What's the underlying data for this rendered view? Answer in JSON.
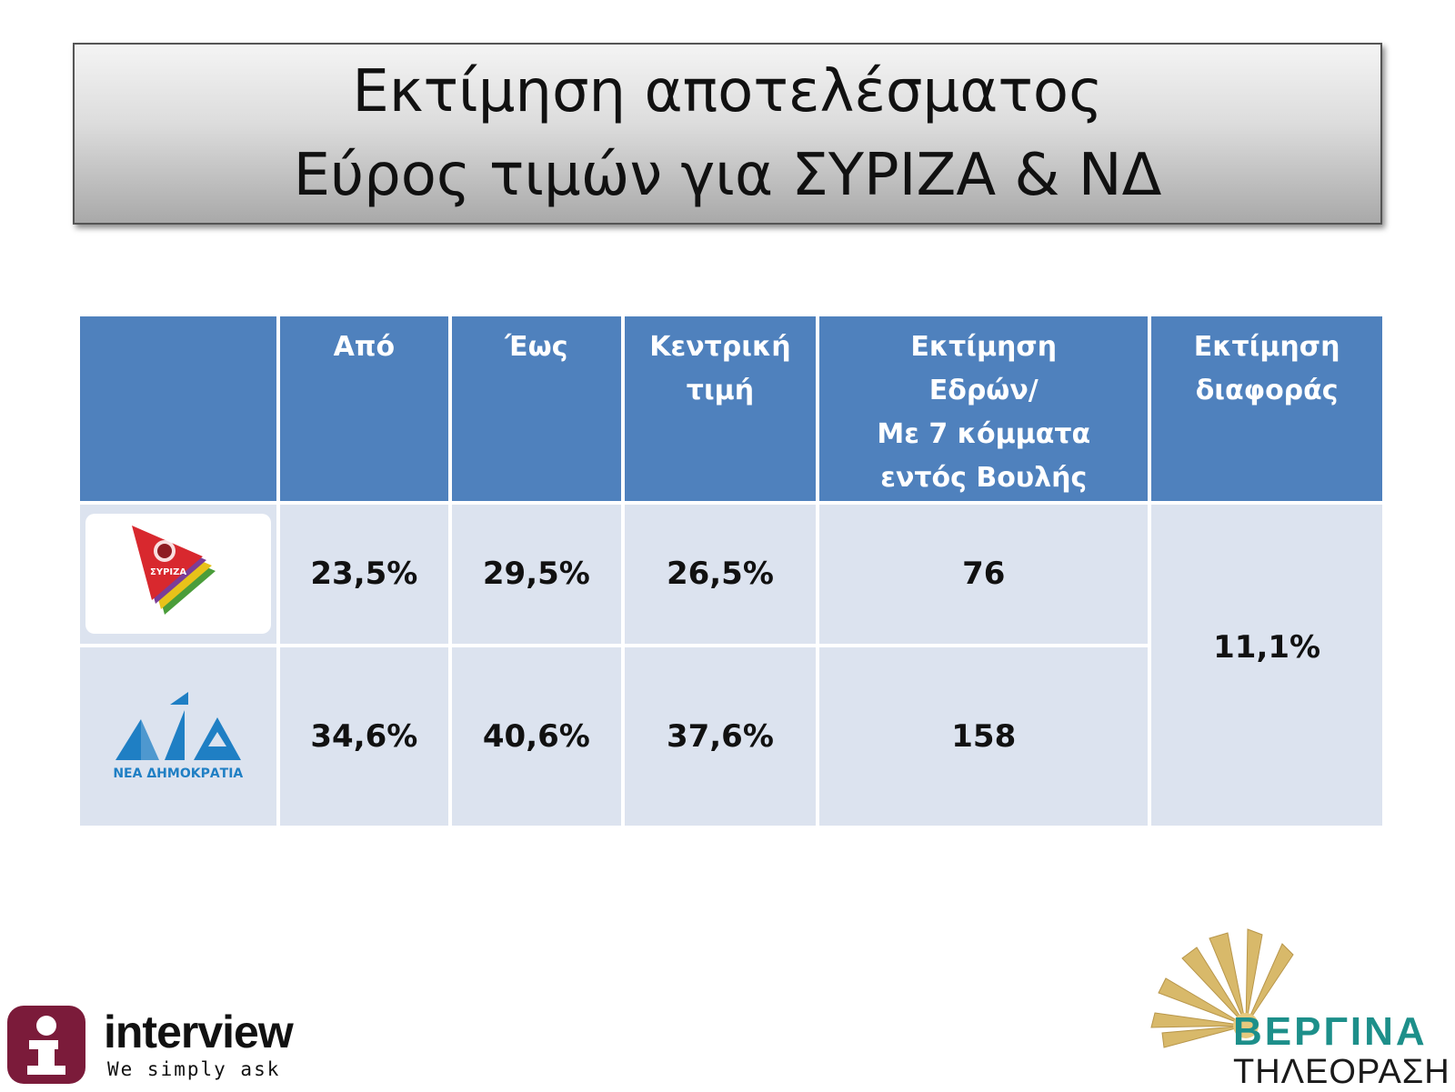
{
  "title": {
    "line1": "Εκτίμηση αποτελέσματος",
    "line2": "Εύρος τιμών για ΣΥΡΙΖΑ & ΝΔ"
  },
  "table": {
    "headers": [
      "Από",
      "Έως",
      "Κεντρική τιμή",
      "Εκτίμηση Εδρών/ Με 7 κόμματα εντός Βουλής",
      "Εκτίμηση διαφοράς"
    ],
    "header_lines": {
      "kentriki": [
        "Κεντρική",
        "τιμή"
      ],
      "edres": [
        "Εκτίμηση",
        "Εδρών/",
        "Με 7 κόμματα",
        "εντός Βουλής"
      ],
      "diafora": [
        "Εκτίμηση",
        "διαφοράς"
      ]
    },
    "rows": [
      {
        "logo": "syriza-logo",
        "logo_text": "ΣΥΡΙΖΑ",
        "apo": "23,5%",
        "eos": "29,5%",
        "kentriki": "26,5%",
        "edres": "76"
      },
      {
        "logo": "nd-logo",
        "logo_text": "ΝΕΑ ΔΗΜΟΚΡΑΤΙΑ",
        "apo": "34,6%",
        "eos": "40,6%",
        "kentriki": "37,6%",
        "edres": "158"
      }
    ],
    "diafora": "11,1%"
  },
  "footer": {
    "interview": {
      "word": "interview",
      "slogan": "We simply ask"
    },
    "vergina": {
      "word": "ΒΕΡΓΙΝΑ",
      "sub": "ΤΗΛΕΟΡΑΣΗ"
    }
  },
  "colors": {
    "header_bg": "#4f81bd",
    "body_bg": "#dce3ef",
    "nd_blue": "#1f7fc4",
    "interview_burgundy": "#7b1b3a",
    "vergina_teal": "#1d8f8a"
  }
}
